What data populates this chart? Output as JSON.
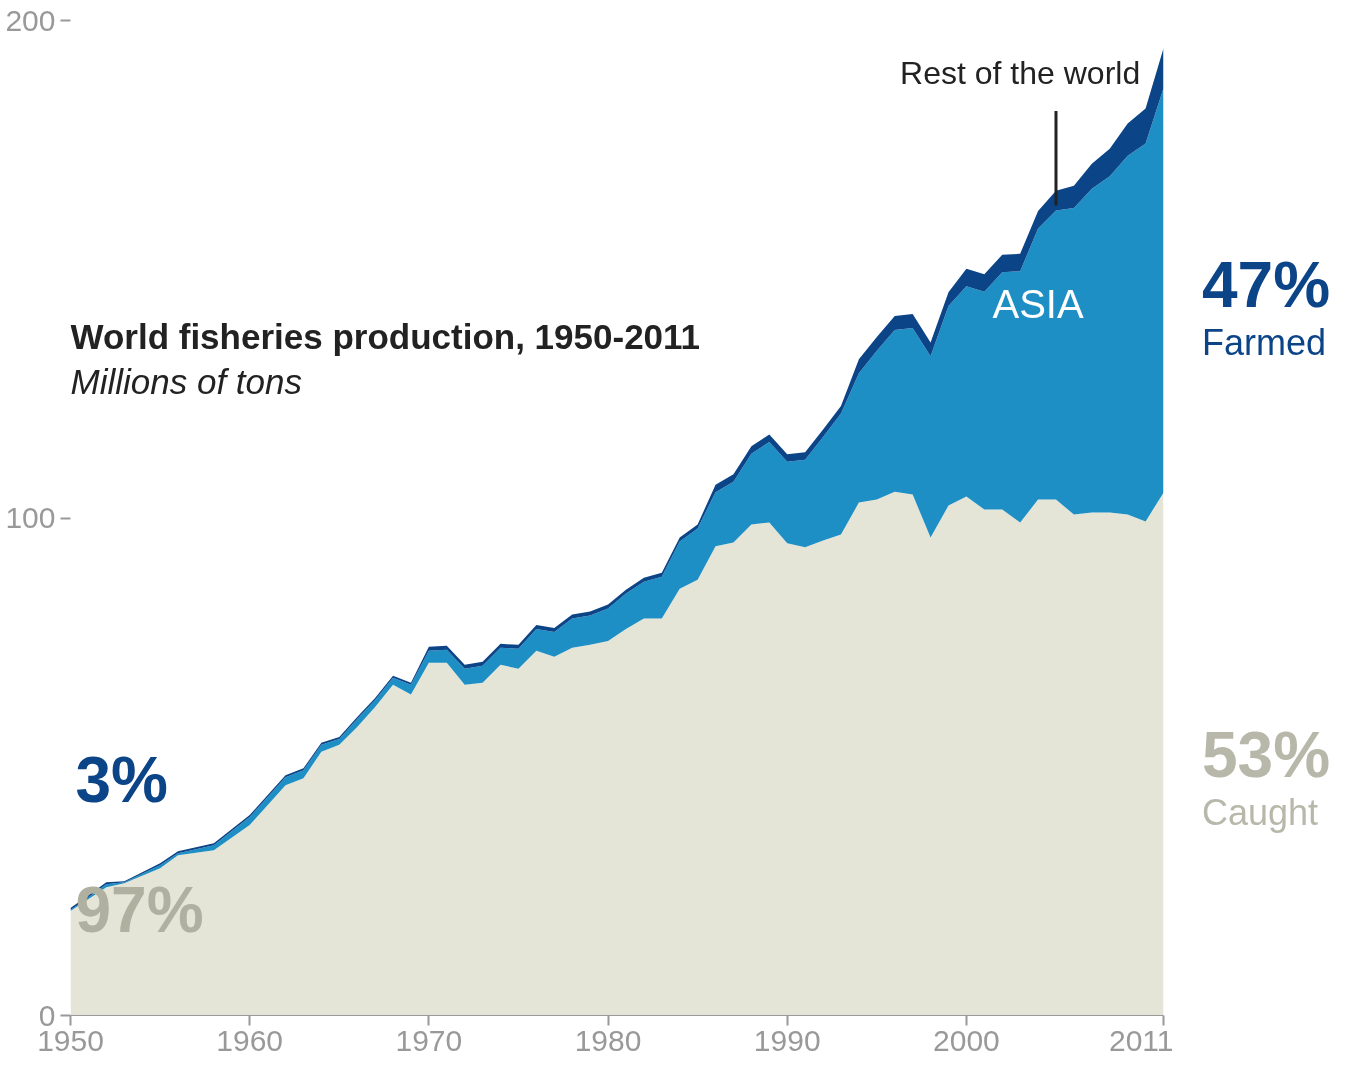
{
  "chart_data": {
    "type": "area",
    "stacked": true,
    "title": "World fisheries production, 1950-2011",
    "subtitle": "Millions of tons",
    "x": [
      1950,
      1952,
      1953,
      1955,
      1956,
      1958,
      1960,
      1962,
      1963,
      1964,
      1965,
      1966,
      1967,
      1968,
      1969,
      1970,
      1971,
      1972,
      1973,
      1974,
      1975,
      1976,
      1977,
      1978,
      1979,
      1980,
      1981,
      1982,
      1983,
      1984,
      1985,
      1986,
      1987,
      1988,
      1989,
      1990,
      1991,
      1992,
      1993,
      1994,
      1995,
      1996,
      1997,
      1998,
      1999,
      2000,
      2001,
      2002,
      2003,
      2004,
      2005,
      2006,
      2007,
      2008,
      2009,
      2010,
      2011
    ],
    "series": [
      {
        "name": "Caught",
        "color": "#e5e5d7",
        "values": [
          21.0,
          25.8,
          26.6,
          29.6,
          32.2,
          33.2,
          38.3,
          46.3,
          47.7,
          53.0,
          54.4,
          58.0,
          62.0,
          66.5,
          64.5,
          70.9,
          70.9,
          66.5,
          66.9,
          70.5,
          69.7,
          73.3,
          72.1,
          73.9,
          74.5,
          75.3,
          77.7,
          79.8,
          79.8,
          85.8,
          87.6,
          94.3,
          95.1,
          98.7,
          99.1,
          94.9,
          94.1,
          95.5,
          96.7,
          103.1,
          103.7,
          105.3,
          104.7,
          96.1,
          102.5,
          104.3,
          101.7,
          101.7,
          99.1,
          103.7,
          103.7,
          100.7,
          101.1,
          101.1,
          100.7,
          99.3,
          105.1
        ]
      },
      {
        "name": "ASIA",
        "color": "#1e8fc4",
        "values": [
          0.2,
          0.6,
          0.2,
          0.6,
          0.4,
          1.0,
          1.6,
          1.6,
          1.6,
          1.4,
          1.2,
          1.6,
          1.4,
          1.4,
          2.0,
          2.4,
          2.6,
          3.2,
          3.4,
          3.4,
          4.0,
          4.4,
          5.0,
          5.9,
          5.9,
          6.5,
          7.1,
          7.4,
          8.4,
          9.5,
          10.3,
          10.9,
          12.2,
          14.2,
          16.2,
          16.4,
          17.6,
          20.8,
          24.3,
          26.0,
          29.9,
          32.5,
          33.5,
          36.4,
          40.1,
          42.3,
          43.8,
          47.7,
          50.5,
          54.5,
          58.1,
          61.6,
          65.1,
          67.6,
          72.1,
          76.0,
          81.3
        ]
      },
      {
        "name": "Rest of the world",
        "color": "#0c4488",
        "values": [
          0.4,
          0.4,
          0.2,
          0.4,
          0.4,
          0.4,
          0.4,
          0.4,
          0.4,
          0.4,
          0.4,
          0.4,
          0.4,
          0.4,
          0.4,
          0.8,
          0.8,
          0.8,
          0.8,
          0.8,
          0.8,
          0.8,
          0.8,
          0.8,
          0.8,
          0.8,
          0.8,
          0.8,
          0.8,
          0.8,
          0.8,
          1.5,
          1.5,
          1.5,
          1.5,
          1.5,
          1.5,
          1.5,
          1.5,
          2.8,
          2.8,
          2.8,
          2.8,
          2.8,
          2.8,
          3.5,
          3.5,
          3.5,
          3.5,
          3.5,
          4.0,
          4.5,
          5.0,
          5.5,
          6.5,
          7.0,
          8.0
        ]
      }
    ],
    "xlim": [
      1950,
      2011
    ],
    "xticks": [
      1950,
      1960,
      1970,
      1980,
      1990,
      2000,
      2011
    ],
    "ylim": [
      0,
      200
    ],
    "yticks": [
      0,
      100,
      200
    ],
    "grid": false,
    "annotations": [
      "47%",
      "Farmed",
      "53%",
      "97%",
      "3%"
    ]
  }
}
